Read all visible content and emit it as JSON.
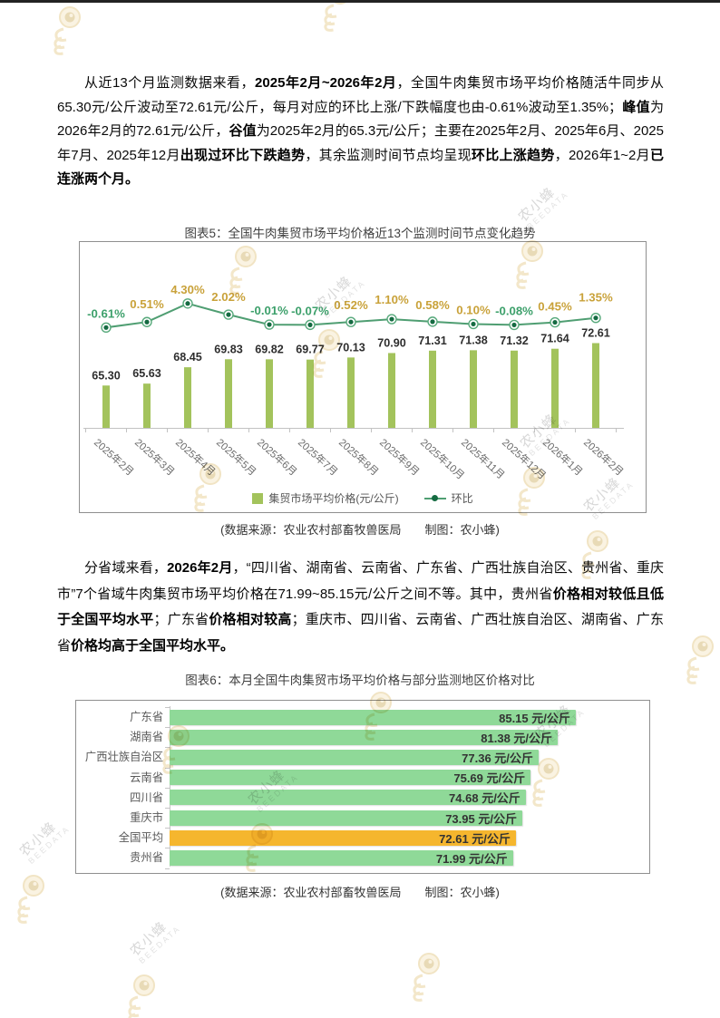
{
  "watermark": {
    "brand": "农小蜂",
    "sub": "BEEDATA"
  },
  "page": {
    "paragraph1": {
      "runs": [
        {
          "text": "从近13个月监测数据来看，",
          "bold": false
        },
        {
          "text": "2025年2月~2026年2月",
          "bold": true
        },
        {
          "text": "，全国牛肉集贸市场平均价格随活牛同步从65.30元/公斤波动至72.61元/公斤，每月对应的环比上涨/下跌幅度也由-0.61%波动至1.35%；",
          "bold": false
        },
        {
          "text": "峰值",
          "bold": true
        },
        {
          "text": "为2026年2月的72.61元/公斤，",
          "bold": false
        },
        {
          "text": "谷值",
          "bold": true
        },
        {
          "text": "为2025年2月的65.3元/公斤；主要在2025年2月、2025年6月、2025年7月、2025年12月",
          "bold": false
        },
        {
          "text": "出现过环比下跌趋势",
          "bold": true
        },
        {
          "text": "，其余监测时间节点均呈现",
          "bold": false
        },
        {
          "text": "环比上涨趋势",
          "bold": true
        },
        {
          "text": "，2026年1~2月",
          "bold": false
        },
        {
          "text": "已连涨两个月。",
          "bold": true
        }
      ]
    },
    "paragraph2": {
      "runs": [
        {
          "text": "分省域来看，",
          "bold": false
        },
        {
          "text": "2026年2月",
          "bold": true
        },
        {
          "text": "，“四川省、湖南省、云南省、广东省、广西壮族自治区、贵州省、重庆市”7个省域牛肉集贸市场平均价格在71.99~85.15元/公斤之间不等。其中，贵州省",
          "bold": false
        },
        {
          "text": "价格相对较低且低于全国平均水平",
          "bold": true
        },
        {
          "text": "；广东省",
          "bold": false
        },
        {
          "text": "价格相对较高",
          "bold": true
        },
        {
          "text": "；重庆市、四川省、云南省、广西壮族自治区、湖南省、广东省",
          "bold": false
        },
        {
          "text": "价格均高于全国平均水平。",
          "bold": true
        }
      ]
    }
  },
  "chart_data": [
    {
      "type": "bar+line",
      "title": "图表5：全国牛肉集贸市场平均价格近13个监测时间节点变化趋势",
      "caption": "(数据来源：农业农村部畜牧兽医局　　制图：农小蜂)",
      "categories": [
        "2025年2月",
        "2025年3月",
        "2025年4月",
        "2025年5月",
        "2025年6月",
        "2025年7月",
        "2025年8月",
        "2025年9月",
        "2025年10月",
        "2025年11月",
        "2025年12月",
        "2026年1月",
        "2026年2月"
      ],
      "legend_position": "bottom",
      "grid": false,
      "series": [
        {
          "name": "集贸市场平均价格(元/公斤)",
          "type": "bar",
          "values": [
            65.3,
            65.63,
            68.45,
            69.83,
            69.82,
            69.77,
            70.13,
            70.9,
            71.31,
            71.38,
            71.32,
            71.64,
            72.61
          ],
          "value_labels": [
            "65.30",
            "65.63",
            "68.45",
            "69.83",
            "69.82",
            "69.77",
            "70.13",
            "70.90",
            "71.31",
            "71.38",
            "71.32",
            "71.64",
            "72.61"
          ],
          "color": "#a3c35c"
        },
        {
          "name": "环比",
          "type": "line",
          "values": [
            -0.61,
            0.51,
            4.3,
            2.02,
            -0.01,
            -0.07,
            0.52,
            1.1,
            0.58,
            0.1,
            -0.08,
            0.45,
            1.35
          ],
          "value_labels": [
            "-0.61%",
            "0.51%",
            "4.30%",
            "2.02%",
            "-0.01%",
            "-0.07%",
            "0.52%",
            "1.10%",
            "0.58%",
            "0.10%",
            "-0.08%",
            "0.45%",
            "1.35%"
          ],
          "color": "#4f9e72",
          "marker_color": "#156b42",
          "label_color_positive": "#c9a23a",
          "label_color_negative": "#3da06b"
        }
      ]
    },
    {
      "type": "bar",
      "orientation": "horizontal",
      "title": "图表6：本月全国牛肉集贸市场平均价格与部分监测地区价格对比",
      "caption": "(数据来源：农业农村部畜牧兽医局　　制图：农小蜂)",
      "categories": [
        "广东省",
        "湖南省",
        "广西壮族自治区",
        "云南省",
        "四川省",
        "重庆市",
        "全国平均",
        "贵州省"
      ],
      "values": [
        85.15,
        81.38,
        77.36,
        75.69,
        74.68,
        73.95,
        72.61,
        71.99
      ],
      "unit": "元/公斤",
      "xlim": [
        0,
        90
      ],
      "bar_color": "#8fd998",
      "highlight": {
        "index": 6,
        "category": "全国平均",
        "color": "#f5b62e"
      }
    }
  ]
}
